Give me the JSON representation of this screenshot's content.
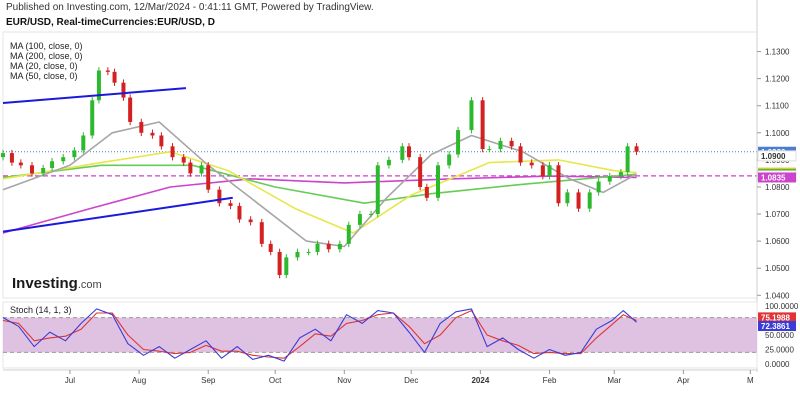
{
  "header": {
    "published": "Published on Investing.com, 12/Mar/2024 - 0:41:11 GMT, Powered by TradingView.",
    "symbol": "EUR/USD, Real-timeCurrencies:EUR/USD, D"
  },
  "legend": {
    "ma100": "MA (100, close, 0)",
    "ma200": "MA (200, close, 0)",
    "ma20": "MA (20, close, 0)",
    "ma50": "MA (50, close, 0)"
  },
  "logo": {
    "text": "Investing",
    "suffix": ".com"
  },
  "stoch_label": "Stoch (14, 1, 3)",
  "colors": {
    "up": "#2db92d",
    "down": "#d32020",
    "ma20": "#a6a6a6",
    "ma50": "#e7e74a",
    "ma100": "#66cc55",
    "ma200": "#cc44cc",
    "trend": "#1a1adc",
    "price_line": "#4a7ed1",
    "stoch_k": "#3b3bd8",
    "stoch_d": "#e03434",
    "stoch_band": "#d9b7dc"
  },
  "chart_data": [
    {
      "type": "candlestick",
      "title": "EUR/USD, Real-timeCurrencies:EUR/USD, D",
      "ylim": [
        1.039,
        1.135
      ],
      "y_ticks": [
        "1.1300",
        "1.1200",
        "1.1100",
        "1.1000",
        "1.0900",
        "1.0800",
        "1.0700",
        "1.0600",
        "1.0500",
        "1.0400"
      ],
      "x_ticks": [
        "Jul",
        "Aug",
        "Sep",
        "Oct",
        "Nov",
        "Dec",
        "2024",
        "Feb",
        "Mar",
        "Apr",
        "M"
      ],
      "price_labels": [
        {
          "label": "1.0930",
          "value": 1.093,
          "color": "#4a7ed1"
        },
        {
          "label": "1.0900",
          "value": 1.09,
          "color": "#ffffff"
        },
        {
          "label": "1.0853",
          "value": 1.0853,
          "color": "#e7c23a"
        },
        {
          "label": "1.0847",
          "value": 1.0847,
          "color": "#2db92d"
        },
        {
          "label": "1.0841",
          "value": 1.0841,
          "color": "#ffffff"
        },
        {
          "label": "1.0835",
          "value": 1.0835,
          "color": "#cc44cc"
        }
      ],
      "horizontal_lines": [
        {
          "value": 1.093,
          "style": "dotted",
          "color": "#4a7ed1"
        },
        {
          "value": 1.0841,
          "style": "dashed",
          "color": "#cc44cc"
        }
      ],
      "trendlines": [
        {
          "from": [
            "2023-06-01",
            1.111
          ],
          "to": [
            "2023-08-22",
            1.1165
          ]
        },
        {
          "from": [
            "2023-06-01",
            1.0635
          ],
          "to": [
            "2023-09-12",
            1.076
          ]
        }
      ],
      "ohlc_close": [
        [
          "2023-06-01",
          1.0925
        ],
        [
          "2023-06-05",
          1.089
        ],
        [
          "2023-06-09",
          1.088
        ],
        [
          "2023-06-14",
          1.085
        ],
        [
          "2023-06-19",
          1.087
        ],
        [
          "2023-06-23",
          1.0895
        ],
        [
          "2023-06-28",
          1.091
        ],
        [
          "2023-07-03",
          1.0935
        ],
        [
          "2023-07-07",
          1.099
        ],
        [
          "2023-07-11",
          1.112
        ],
        [
          "2023-07-14",
          1.123
        ],
        [
          "2023-07-18",
          1.1225
        ],
        [
          "2023-07-21",
          1.1185
        ],
        [
          "2023-07-25",
          1.113
        ],
        [
          "2023-07-28",
          1.104
        ],
        [
          "2023-08-02",
          1.1
        ],
        [
          "2023-08-07",
          1.099
        ],
        [
          "2023-08-11",
          1.095
        ],
        [
          "2023-08-16",
          1.091
        ],
        [
          "2023-08-21",
          1.089
        ],
        [
          "2023-08-24",
          1.085
        ],
        [
          "2023-08-29",
          1.088
        ],
        [
          "2023-09-01",
          1.079
        ],
        [
          "2023-09-06",
          1.074
        ],
        [
          "2023-09-11",
          1.073
        ],
        [
          "2023-09-15",
          1.068
        ],
        [
          "2023-09-20",
          1.067
        ],
        [
          "2023-09-25",
          1.059
        ],
        [
          "2023-09-29",
          1.056
        ],
        [
          "2023-10-03",
          1.0475
        ],
        [
          "2023-10-06",
          1.054
        ],
        [
          "2023-10-11",
          1.056
        ],
        [
          "2023-10-16",
          1.056
        ],
        [
          "2023-10-20",
          1.059
        ],
        [
          "2023-10-25",
          1.057
        ],
        [
          "2023-10-30",
          1.059
        ],
        [
          "2023-11-03",
          1.066
        ],
        [
          "2023-11-08",
          1.07
        ],
        [
          "2023-11-13",
          1.07
        ],
        [
          "2023-11-16",
          1.088
        ],
        [
          "2023-11-21",
          1.09
        ],
        [
          "2023-11-27",
          1.095
        ],
        [
          "2023-11-30",
          1.091
        ],
        [
          "2023-12-05",
          1.08
        ],
        [
          "2023-12-08",
          1.076
        ],
        [
          "2023-12-13",
          1.088
        ],
        [
          "2023-12-18",
          1.092
        ],
        [
          "2023-12-22",
          1.101
        ],
        [
          "2023-12-28",
          1.112
        ],
        [
          "2024-01-02",
          1.094
        ],
        [
          "2024-01-05",
          1.094
        ],
        [
          "2024-01-10",
          1.097
        ],
        [
          "2024-01-15",
          1.095
        ],
        [
          "2024-01-19",
          1.089
        ],
        [
          "2024-01-24",
          1.088
        ],
        [
          "2024-01-29",
          1.084
        ],
        [
          "2024-02-01",
          1.088
        ],
        [
          "2024-02-05",
          1.074
        ],
        [
          "2024-02-09",
          1.078
        ],
        [
          "2024-02-14",
          1.072
        ],
        [
          "2024-02-19",
          1.078
        ],
        [
          "2024-02-23",
          1.082
        ],
        [
          "2024-02-28",
          1.084
        ],
        [
          "2024-03-04",
          1.0855
        ],
        [
          "2024-03-07",
          1.095
        ],
        [
          "2024-03-11",
          1.093
        ]
      ],
      "ma20": [
        [
          "2023-06-01",
          1.079
        ],
        [
          "2023-07-01",
          1.088
        ],
        [
          "2023-07-20",
          1.1
        ],
        [
          "2023-08-10",
          1.104
        ],
        [
          "2023-09-01",
          1.088
        ],
        [
          "2023-09-20",
          1.076
        ],
        [
          "2023-10-15",
          1.06
        ],
        [
          "2023-11-01",
          1.058
        ],
        [
          "2023-11-20",
          1.076
        ],
        [
          "2023-12-10",
          1.092
        ],
        [
          "2023-12-28",
          1.099
        ],
        [
          "2024-01-20",
          1.093
        ],
        [
          "2024-02-10",
          1.083
        ],
        [
          "2024-02-25",
          1.078
        ],
        [
          "2024-03-11",
          1.0847
        ]
      ],
      "ma50": [
        [
          "2023-06-01",
          1.083
        ],
        [
          "2023-07-15",
          1.089
        ],
        [
          "2023-08-15",
          1.093
        ],
        [
          "2023-09-10",
          1.086
        ],
        [
          "2023-10-10",
          1.072
        ],
        [
          "2023-11-05",
          1.063
        ],
        [
          "2023-12-01",
          1.077
        ],
        [
          "2024-01-05",
          1.089
        ],
        [
          "2024-02-05",
          1.09
        ],
        [
          "2024-03-01",
          1.086
        ],
        [
          "2024-03-11",
          1.0853
        ]
      ],
      "ma100": [
        [
          "2023-06-01",
          1.0835
        ],
        [
          "2023-07-15",
          1.088
        ],
        [
          "2023-08-25",
          1.088
        ],
        [
          "2023-10-01",
          1.08
        ],
        [
          "2023-11-10",
          1.074
        ],
        [
          "2023-12-10",
          1.0775
        ],
        [
          "2024-01-20",
          1.081
        ],
        [
          "2024-03-11",
          1.0847
        ]
      ],
      "ma200": [
        [
          "2023-06-01",
          1.063
        ],
        [
          "2023-07-10",
          1.072
        ],
        [
          "2023-08-15",
          1.08
        ],
        [
          "2023-09-20",
          1.083
        ],
        [
          "2023-11-01",
          1.0815
        ],
        [
          "2023-12-20",
          1.083
        ],
        [
          "2024-02-01",
          1.084
        ],
        [
          "2024-03-11",
          1.0835
        ]
      ]
    },
    {
      "type": "line",
      "title": "Stoch (14, 1, 3)",
      "ylim": [
        0,
        100
      ],
      "band": [
        20,
        80
      ],
      "y_ticks": [
        "100.0000",
        "75.0000",
        "50.0000",
        "25.0000",
        "0.0000"
      ],
      "value_labels": [
        {
          "label": "75.1988",
          "value": 75.1988,
          "color": "#e03434"
        },
        {
          "label": "72.3861",
          "value": 72.3861,
          "color": "#3b3bd8"
        }
      ],
      "series": [
        {
          "name": "K",
          "values": [
            [
              "2023-06-01",
              80
            ],
            [
              "2023-06-08",
              65
            ],
            [
              "2023-06-15",
              30
            ],
            [
              "2023-06-22",
              55
            ],
            [
              "2023-06-29",
              40
            ],
            [
              "2023-07-06",
              70
            ],
            [
              "2023-07-13",
              95
            ],
            [
              "2023-07-20",
              85
            ],
            [
              "2023-07-27",
              35
            ],
            [
              "2023-08-03",
              15
            ],
            [
              "2023-08-10",
              30
            ],
            [
              "2023-08-17",
              10
            ],
            [
              "2023-08-24",
              25
            ],
            [
              "2023-08-31",
              40
            ],
            [
              "2023-09-07",
              10
            ],
            [
              "2023-09-14",
              30
            ],
            [
              "2023-09-21",
              8
            ],
            [
              "2023-09-28",
              15
            ],
            [
              "2023-10-05",
              5
            ],
            [
              "2023-10-12",
              45
            ],
            [
              "2023-10-19",
              60
            ],
            [
              "2023-10-26",
              40
            ],
            [
              "2023-11-02",
              85
            ],
            [
              "2023-11-09",
              70
            ],
            [
              "2023-11-16",
              92
            ],
            [
              "2023-11-23",
              88
            ],
            [
              "2023-11-30",
              55
            ],
            [
              "2023-12-07",
              20
            ],
            [
              "2023-12-14",
              70
            ],
            [
              "2023-12-21",
              90
            ],
            [
              "2023-12-28",
              95
            ],
            [
              "2024-01-04",
              30
            ],
            [
              "2024-01-11",
              45
            ],
            [
              "2024-01-18",
              25
            ],
            [
              "2024-01-25",
              10
            ],
            [
              "2024-02-01",
              25
            ],
            [
              "2024-02-08",
              15
            ],
            [
              "2024-02-15",
              20
            ],
            [
              "2024-02-22",
              60
            ],
            [
              "2024-02-29",
              75
            ],
            [
              "2024-03-05",
              92
            ],
            [
              "2024-03-11",
              72
            ]
          ]
        },
        {
          "name": "D",
          "values": [
            [
              "2023-06-01",
              75
            ],
            [
              "2023-06-08",
              70
            ],
            [
              "2023-06-15",
              40
            ],
            [
              "2023-06-22",
              45
            ],
            [
              "2023-06-29",
              48
            ],
            [
              "2023-07-06",
              60
            ],
            [
              "2023-07-13",
              88
            ],
            [
              "2023-07-20",
              88
            ],
            [
              "2023-07-27",
              50
            ],
            [
              "2023-08-03",
              25
            ],
            [
              "2023-08-10",
              22
            ],
            [
              "2023-08-17",
              18
            ],
            [
              "2023-08-24",
              20
            ],
            [
              "2023-08-31",
              32
            ],
            [
              "2023-09-07",
              22
            ],
            [
              "2023-09-14",
              22
            ],
            [
              "2023-09-21",
              15
            ],
            [
              "2023-09-28",
              12
            ],
            [
              "2023-10-05",
              10
            ],
            [
              "2023-10-12",
              30
            ],
            [
              "2023-10-19",
              52
            ],
            [
              "2023-10-26",
              48
            ],
            [
              "2023-11-02",
              70
            ],
            [
              "2023-11-09",
              75
            ],
            [
              "2023-11-16",
              85
            ],
            [
              "2023-11-23",
              88
            ],
            [
              "2023-11-30",
              65
            ],
            [
              "2023-12-07",
              35
            ],
            [
              "2023-12-14",
              50
            ],
            [
              "2023-12-21",
              80
            ],
            [
              "2023-12-28",
              92
            ],
            [
              "2024-01-04",
              50
            ],
            [
              "2024-01-11",
              40
            ],
            [
              "2024-01-18",
              32
            ],
            [
              "2024-01-25",
              18
            ],
            [
              "2024-02-01",
              20
            ],
            [
              "2024-02-08",
              18
            ],
            [
              "2024-02-15",
              18
            ],
            [
              "2024-02-22",
              45
            ],
            [
              "2024-02-29",
              68
            ],
            [
              "2024-03-05",
              85
            ],
            [
              "2024-03-11",
              75
            ]
          ]
        }
      ]
    }
  ]
}
